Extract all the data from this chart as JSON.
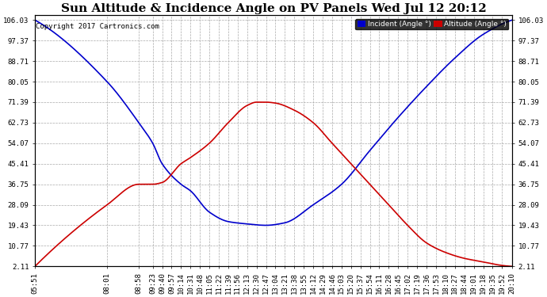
{
  "title": "Sun Altitude & Incidence Angle on PV Panels Wed Jul 12 20:12",
  "copyright": "Copyright 2017 Cartronics.com",
  "legend_incident": "Incident (Angle °)",
  "legend_altitude": "Altitude (Angle °)",
  "yticks": [
    2.11,
    10.77,
    19.43,
    28.09,
    36.75,
    45.41,
    54.07,
    62.73,
    71.39,
    80.05,
    88.71,
    97.37,
    106.03
  ],
  "xtick_labels": [
    "05:51",
    "08:01",
    "08:58",
    "09:23",
    "09:40",
    "09:57",
    "10:14",
    "10:31",
    "10:48",
    "11:05",
    "11:22",
    "11:39",
    "11:56",
    "12:13",
    "12:30",
    "12:47",
    "13:04",
    "13:21",
    "13:38",
    "13:55",
    "14:12",
    "14:29",
    "14:46",
    "15:03",
    "15:20",
    "15:37",
    "15:54",
    "16:11",
    "16:28",
    "16:45",
    "17:02",
    "17:19",
    "17:36",
    "17:53",
    "18:10",
    "18:27",
    "18:44",
    "19:01",
    "19:18",
    "19:35",
    "19:52",
    "20:10"
  ],
  "incident_color": "#0000cc",
  "altitude_color": "#cc0000",
  "background_color": "#ffffff",
  "grid_color": "#aaaaaa",
  "title_fontsize": 11,
  "tick_fontsize": 6.5,
  "ymin": 2.11,
  "ymax": 106.03,
  "blue_keypoints_t": [
    "05:51",
    "08:01",
    "08:58",
    "09:23",
    "09:40",
    "10:14",
    "10:31",
    "11:05",
    "11:39",
    "12:13",
    "12:30",
    "12:47",
    "13:21",
    "14:12",
    "15:03",
    "15:54",
    "16:45",
    "17:36",
    "18:27",
    "19:18",
    "20:10"
  ],
  "blue_keypoints_v": [
    106.03,
    80.0,
    62.73,
    54.07,
    45.41,
    36.75,
    34.0,
    25.0,
    21.0,
    20.0,
    19.6,
    19.43,
    20.5,
    28.09,
    36.75,
    51.0,
    65.0,
    78.0,
    90.0,
    100.0,
    106.03
  ],
  "red_keypoints_t": [
    "05:51",
    "08:01",
    "08:58",
    "09:23",
    "09:40",
    "10:14",
    "10:31",
    "11:05",
    "11:39",
    "12:13",
    "12:30",
    "12:47",
    "13:04",
    "13:38",
    "14:12",
    "14:46",
    "15:20",
    "15:54",
    "16:28",
    "17:02",
    "17:36",
    "18:10",
    "18:44",
    "19:18",
    "19:52",
    "20:10"
  ],
  "red_keypoints_v": [
    2.11,
    28.09,
    36.75,
    36.75,
    37.5,
    45.41,
    48.0,
    54.07,
    62.73,
    70.0,
    71.39,
    71.39,
    71.0,
    68.0,
    62.73,
    54.07,
    45.41,
    36.75,
    28.09,
    19.43,
    12.0,
    8.0,
    5.5,
    4.0,
    2.5,
    2.11
  ]
}
